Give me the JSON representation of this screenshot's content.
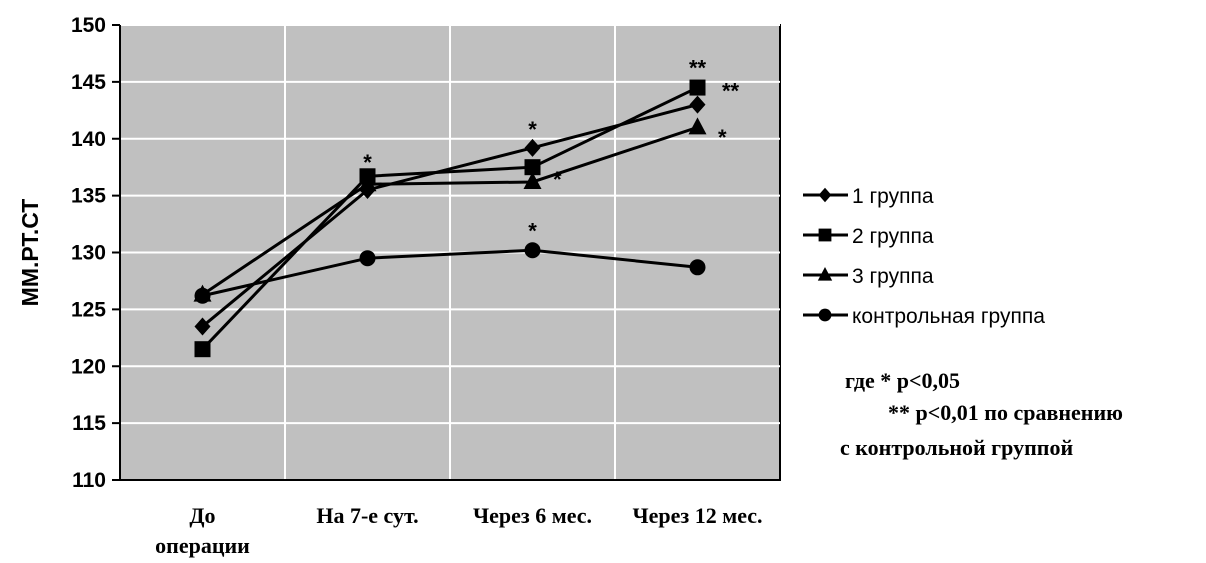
{
  "chart_data": {
    "type": "line",
    "ylabel": "ММ.РТ.СТ",
    "ylim": [
      110,
      150
    ],
    "yticks": [
      110,
      115,
      120,
      125,
      130,
      135,
      140,
      145,
      150
    ],
    "categories": [
      "До\nоперации",
      "На 7-е сут.",
      "Через 6 мес.",
      "Через 12 мес."
    ],
    "grid": true,
    "legend_position": "right",
    "plot_background": "#c0c0c0",
    "series": [
      {
        "name": "1 группа",
        "marker": "diamond",
        "values": [
          123.5,
          135.5,
          139.2,
          143
        ]
      },
      {
        "name": "2 группа",
        "marker": "square",
        "values": [
          121.5,
          136.7,
          137.5,
          144.5
        ]
      },
      {
        "name": "3 группа",
        "marker": "triangle",
        "values": [
          126.3,
          136,
          136.2,
          141
        ]
      },
      {
        "name": "контрольная группа",
        "marker": "circle",
        "values": [
          126.2,
          129.5,
          130.2,
          128.7
        ]
      }
    ],
    "annotations": [
      {
        "text": "*",
        "category": 1,
        "value": 138.3
      },
      {
        "text": "*",
        "category": 2,
        "value": 141.2
      },
      {
        "text": "*",
        "category": 2,
        "value": 132.3
      },
      {
        "text": "*",
        "category": 2.15,
        "value": 136.8
      },
      {
        "text": "**",
        "category": 3,
        "value": 146.6
      },
      {
        "text": "**",
        "category": 3.2,
        "value": 144.6
      },
      {
        "text": "*",
        "category": 3.15,
        "value": 140.5
      }
    ],
    "note": [
      "где * p<0,05",
      "** p<0,01 по сравнению",
      "с  контрольной группой"
    ]
  }
}
